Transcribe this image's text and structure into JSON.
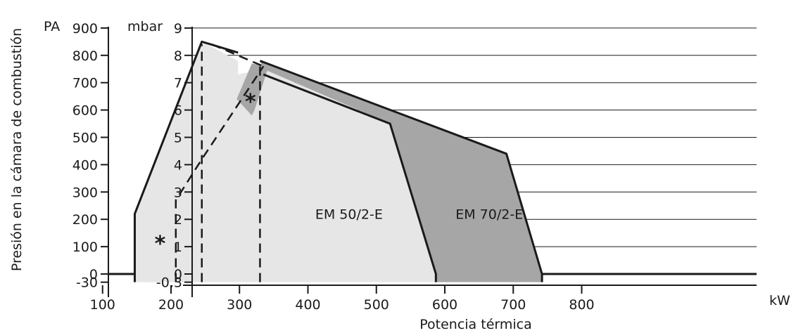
{
  "chart_data": {
    "type": "area",
    "title": "",
    "xlabel": "Potencia térmica",
    "x_unit": "kW",
    "xlim": [
      0,
      800
    ],
    "x_ticks": [
      100,
      200,
      300,
      400,
      500,
      600,
      700,
      800
    ],
    "ylabel": "Presión en la cámara de combustión",
    "y_left": {
      "unit": "PA",
      "ticks": [
        900,
        800,
        700,
        600,
        500,
        400,
        300,
        200,
        100,
        0,
        -30
      ],
      "tick_labels": [
        "900",
        "800",
        "700",
        "600",
        "500",
        "400",
        "300",
        "200",
        "100",
        "0",
        "-30"
      ],
      "range": [
        -30,
        900
      ]
    },
    "y_right": {
      "unit": "mbar",
      "ticks": [
        9,
        8,
        7,
        6,
        5,
        4,
        3,
        2,
        1,
        0,
        -0.3
      ],
      "tick_labels": [
        "9",
        "8",
        "7",
        "6",
        "5",
        "4",
        "3",
        "2",
        "1",
        "0",
        "-0,3"
      ],
      "range": [
        -0.3,
        9
      ]
    },
    "grid": true,
    "series": [
      {
        "name": "EM 50/2-E",
        "color": "#e6e6e6",
        "points": [
          [
            147,
            -0.3
          ],
          [
            147,
            2.2
          ],
          [
            245,
            8.5
          ],
          [
            298,
            7.8
          ],
          [
            298,
            7.3
          ],
          [
            335,
            7.5
          ],
          [
            520,
            5.5
          ],
          [
            587,
            0
          ],
          [
            587,
            -0.3
          ]
        ]
      },
      {
        "name": "EM 70/2-E",
        "color": "#a6a6a6",
        "points": [
          [
            335,
            7.5
          ],
          [
            330,
            7.8
          ],
          [
            690,
            4.4
          ],
          [
            742,
            0
          ],
          [
            742,
            -0.3
          ],
          [
            587,
            -0.3
          ],
          [
            587,
            0
          ],
          [
            520,
            5.5
          ]
        ]
      }
    ],
    "starred_region": {
      "label": "*",
      "color": "#a6a6a6",
      "points": [
        [
          296,
          6.4
        ],
        [
          318,
          7.7
        ],
        [
          345,
          7.6
        ],
        [
          340,
          7.4
        ],
        [
          322,
          6.0
        ],
        [
          318,
          5.8
        ]
      ]
    },
    "dashed_lines": [
      {
        "x": [
          245,
          245
        ],
        "y": [
          -0.3,
          8.4
        ]
      },
      {
        "x": [
          330,
          330
        ],
        "y": [
          -0.3,
          7.8
        ]
      },
      {
        "x": [
          207,
          207,
          245,
          335
        ],
        "y": [
          -0.3,
          2.7,
          4.2,
          7.6
        ]
      },
      {
        "x": [
          260,
          335
        ],
        "y": [
          8.4,
          7.6
        ]
      }
    ],
    "annotations": [
      {
        "text": "*",
        "x": 184,
        "y": 1.1
      },
      {
        "text": "*",
        "x": 316,
        "y": 6.3
      },
      {
        "text": "EM 50/2-E",
        "x": 460,
        "y": 2.2
      },
      {
        "text": "EM 70/2-E",
        "x": 665,
        "y": 2.2
      }
    ],
    "baseline_mbar": 0
  }
}
